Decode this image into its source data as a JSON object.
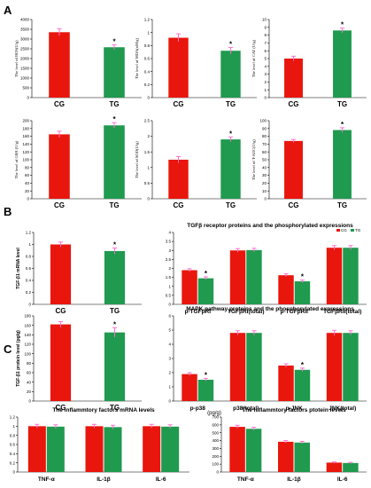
{
  "panel_labels": [
    "A",
    "B",
    "C"
  ],
  "colors": {
    "CG": "#e8160c",
    "TG": "#1f9a4e",
    "error": "#ff6fd0"
  },
  "chart_data": [
    {
      "id": "a1",
      "type": "bar",
      "categories": [
        "CG",
        "TG"
      ],
      "values": [
        3350,
        2580
      ],
      "errors": [
        180,
        120
      ],
      "sig": [
        false,
        true
      ],
      "ylabel": "The level of ROS(U/g)",
      "ylim": [
        0,
        4000
      ],
      "yticks": [
        0,
        500,
        1000,
        1500,
        2000,
        2500,
        3000,
        3500,
        4000
      ],
      "grid": false
    },
    {
      "id": "a2",
      "type": "bar",
      "categories": [
        "CG",
        "TG"
      ],
      "values": [
        0.92,
        0.72
      ],
      "errors": [
        0.06,
        0.05
      ],
      "sig": [
        false,
        true
      ],
      "ylabel": "The level of MDA(nM/g)",
      "ylim": [
        0,
        1.2
      ],
      "yticks": [
        0,
        0.2,
        0.4,
        0.6,
        0.8,
        1,
        1.2
      ],
      "grid": false
    },
    {
      "id": "a3",
      "type": "bar",
      "categories": [
        "CG",
        "TG"
      ],
      "values": [
        5.0,
        8.6
      ],
      "errors": [
        0.3,
        0.3
      ],
      "sig": [
        false,
        true
      ],
      "ylabel": "The level of CAT (U/g)",
      "ylim": [
        0,
        10
      ],
      "yticks": [
        0,
        1,
        2,
        3,
        4,
        5,
        6,
        7,
        8,
        9,
        10
      ],
      "grid": false
    },
    {
      "id": "a4",
      "type": "bar",
      "categories": [
        "CG",
        "TG"
      ],
      "values": [
        165,
        188
      ],
      "errors": [
        8,
        7
      ],
      "sig": [
        false,
        true
      ],
      "ylabel": "The level of GSH (U/g)",
      "ylim": [
        0,
        200
      ],
      "yticks": [
        0,
        20,
        40,
        60,
        80,
        100,
        120,
        140,
        160,
        180,
        200
      ],
      "grid": false
    },
    {
      "id": "a5",
      "type": "bar",
      "categories": [
        "CG",
        "TG"
      ],
      "values": [
        1.25,
        1.9
      ],
      "errors": [
        0.1,
        0.08
      ],
      "sig": [
        false,
        true
      ],
      "ylabel": "The level of SOD(U/g)",
      "ylim": [
        0,
        2.5
      ],
      "yticks": [
        0,
        0.5,
        1,
        1.5,
        2,
        2.5
      ],
      "grid": false
    },
    {
      "id": "a6",
      "type": "bar",
      "categories": [
        "CG",
        "TG"
      ],
      "values": [
        74,
        88
      ],
      "errors": [
        2,
        3
      ],
      "sig": [
        false,
        true
      ],
      "ylabel": "The level of T-AOC(U/g)",
      "ylim": [
        0,
        100
      ],
      "yticks": [
        0,
        10,
        20,
        30,
        40,
        50,
        60,
        70,
        80,
        90,
        100
      ],
      "grid": false
    },
    {
      "id": "b1",
      "type": "bar",
      "categories": [
        "CG",
        "TG"
      ],
      "values": [
        1.0,
        0.89
      ],
      "errors": [
        0.04,
        0.05
      ],
      "sig": [
        false,
        true
      ],
      "ylabel": "TGF-β1 mRNA level",
      "ylim": [
        0,
        1.2
      ],
      "yticks": [
        0,
        0.2,
        0.4,
        0.6,
        0.8,
        1,
        1.2
      ],
      "grid": false
    },
    {
      "id": "b2",
      "type": "bar",
      "title": "TGFβ receptor proteins and the phosphorylated expressions",
      "categories": [
        "p-TGFβRI",
        "TGFβRI(total)",
        "p-TGFβRII",
        "TGFβRII(total)"
      ],
      "series": [
        {
          "name": "CG",
          "values": [
            1.9,
            3.0,
            1.62,
            3.15
          ],
          "errors": [
            0.08,
            0.1,
            0.08,
            0.12
          ]
        },
        {
          "name": "TG",
          "values": [
            1.45,
            3.02,
            1.28,
            3.15
          ],
          "errors": [
            0.08,
            0.1,
            0.07,
            0.12
          ]
        }
      ],
      "sig": [
        true,
        false,
        true,
        false
      ],
      "ylim": [
        0,
        4
      ],
      "yticks": [
        0,
        0.5,
        1,
        1.5,
        2,
        2.5,
        3,
        3.5,
        4
      ],
      "legend": "top-right",
      "grid": false
    },
    {
      "id": "b3",
      "type": "bar",
      "categories": [
        "CG",
        "TG"
      ],
      "values": [
        162,
        145
      ],
      "errors": [
        6,
        10
      ],
      "sig": [
        false,
        true
      ],
      "ylabel": "TGF-β1 protein level (pg/g)",
      "ylim": [
        0,
        180
      ],
      "yticks": [
        0,
        20,
        40,
        60,
        80,
        100,
        120,
        140,
        160,
        180
      ],
      "grid": false
    },
    {
      "id": "b4",
      "type": "bar",
      "title": "MAPK pathway proteins and the phosphorylated expressions",
      "categories": [
        "p-p38",
        "p38(total)",
        "p-JNK",
        "JNK(total)"
      ],
      "series": [
        {
          "name": "CG",
          "values": [
            1.9,
            4.8,
            2.5,
            4.8
          ],
          "errors": [
            0.1,
            0.15,
            0.12,
            0.18
          ]
        },
        {
          "name": "TG",
          "values": [
            1.5,
            4.8,
            2.2,
            4.8
          ],
          "errors": [
            0.1,
            0.15,
            0.12,
            0.15
          ]
        }
      ],
      "sig": [
        true,
        false,
        true,
        false
      ],
      "ylim": [
        0,
        6
      ],
      "yticks": [
        0,
        1,
        2,
        3,
        4,
        5,
        6
      ],
      "grid": false
    },
    {
      "id": "c1",
      "type": "bar",
      "title": "The inflammtory factors mRNA levels",
      "categories": [
        "TNF-α",
        "IL-1β",
        "IL-6"
      ],
      "series": [
        {
          "name": "CG",
          "values": [
            1.0,
            1.0,
            1.0
          ],
          "errors": [
            0.04,
            0.04,
            0.04
          ]
        },
        {
          "name": "TG",
          "values": [
            0.99,
            0.98,
            0.99
          ],
          "errors": [
            0.04,
            0.04,
            0.04
          ]
        }
      ],
      "ylim": [
        0,
        1.2
      ],
      "yticks": [
        0,
        0.2,
        0.4,
        0.6,
        0.8,
        1,
        1.2
      ],
      "grid": false
    },
    {
      "id": "c2",
      "type": "bar",
      "title": "The inflammtory factors ptotein levels",
      "unit": "(pg/g)",
      "categories": [
        "TNF-α",
        "IL-1β",
        "IL-6"
      ],
      "series": [
        {
          "name": "CG",
          "values": [
            575,
            385,
            120
          ],
          "errors": [
            20,
            15,
            8
          ]
        },
        {
          "name": "TG",
          "values": [
            550,
            375,
            115
          ],
          "errors": [
            20,
            15,
            8
          ]
        }
      ],
      "ylim": [
        0,
        700
      ],
      "yticks": [
        0,
        100,
        200,
        300,
        400,
        500,
        600,
        700
      ],
      "grid": false
    }
  ]
}
